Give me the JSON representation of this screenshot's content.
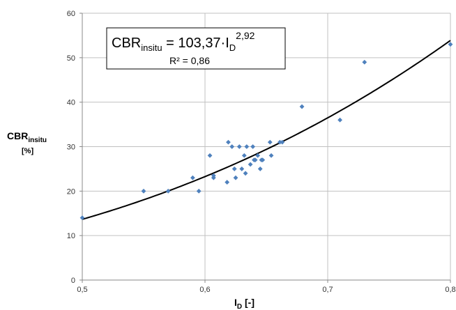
{
  "chart_data": {
    "type": "scatter",
    "title": "",
    "xlabel": {
      "main": "I",
      "sub": "D",
      "unit": " [-]"
    },
    "ylabel": {
      "main": "CBR",
      "sub": "insitu",
      "unit": "[%]"
    },
    "xlim": [
      0.5,
      0.8
    ],
    "ylim": [
      0,
      60
    ],
    "x_ticks": [
      0.5,
      0.6,
      0.7,
      0.8
    ],
    "x_tick_labels": [
      "0,5",
      "0,6",
      "0,7",
      "0,8"
    ],
    "y_ticks": [
      0,
      10,
      20,
      30,
      40,
      50,
      60
    ],
    "y_tick_labels": [
      "0",
      "10",
      "20",
      "30",
      "40",
      "50",
      "60"
    ],
    "grid": true,
    "point_color": "#4f81bd",
    "points": [
      [
        0.5,
        14
      ],
      [
        0.55,
        20
      ],
      [
        0.57,
        20
      ],
      [
        0.59,
        23
      ],
      [
        0.595,
        20
      ],
      [
        0.604,
        28
      ],
      [
        0.607,
        23
      ],
      [
        0.607,
        23.5
      ],
      [
        0.618,
        22
      ],
      [
        0.619,
        31
      ],
      [
        0.622,
        30
      ],
      [
        0.624,
        25
      ],
      [
        0.625,
        23
      ],
      [
        0.628,
        30
      ],
      [
        0.63,
        25
      ],
      [
        0.632,
        28
      ],
      [
        0.633,
        24
      ],
      [
        0.634,
        30
      ],
      [
        0.637,
        26
      ],
      [
        0.639,
        30
      ],
      [
        0.64,
        27
      ],
      [
        0.641,
        27
      ],
      [
        0.643,
        28
      ],
      [
        0.645,
        25
      ],
      [
        0.646,
        27
      ],
      [
        0.647,
        27
      ],
      [
        0.653,
        31
      ],
      [
        0.654,
        28
      ],
      [
        0.661,
        31
      ],
      [
        0.663,
        31
      ],
      [
        0.679,
        39
      ],
      [
        0.71,
        36
      ],
      [
        0.73,
        49
      ],
      [
        0.8,
        53
      ]
    ],
    "trendline": {
      "type": "power",
      "a": 103.37,
      "b": 2.92,
      "color": "#000000"
    },
    "equation": {
      "prefix": "CBR",
      "prefix_sub": "insitu",
      "middle": " = 103,37·I",
      "var_sub": "D",
      "exponent": "2,92",
      "r2": "R² = 0,86"
    }
  }
}
